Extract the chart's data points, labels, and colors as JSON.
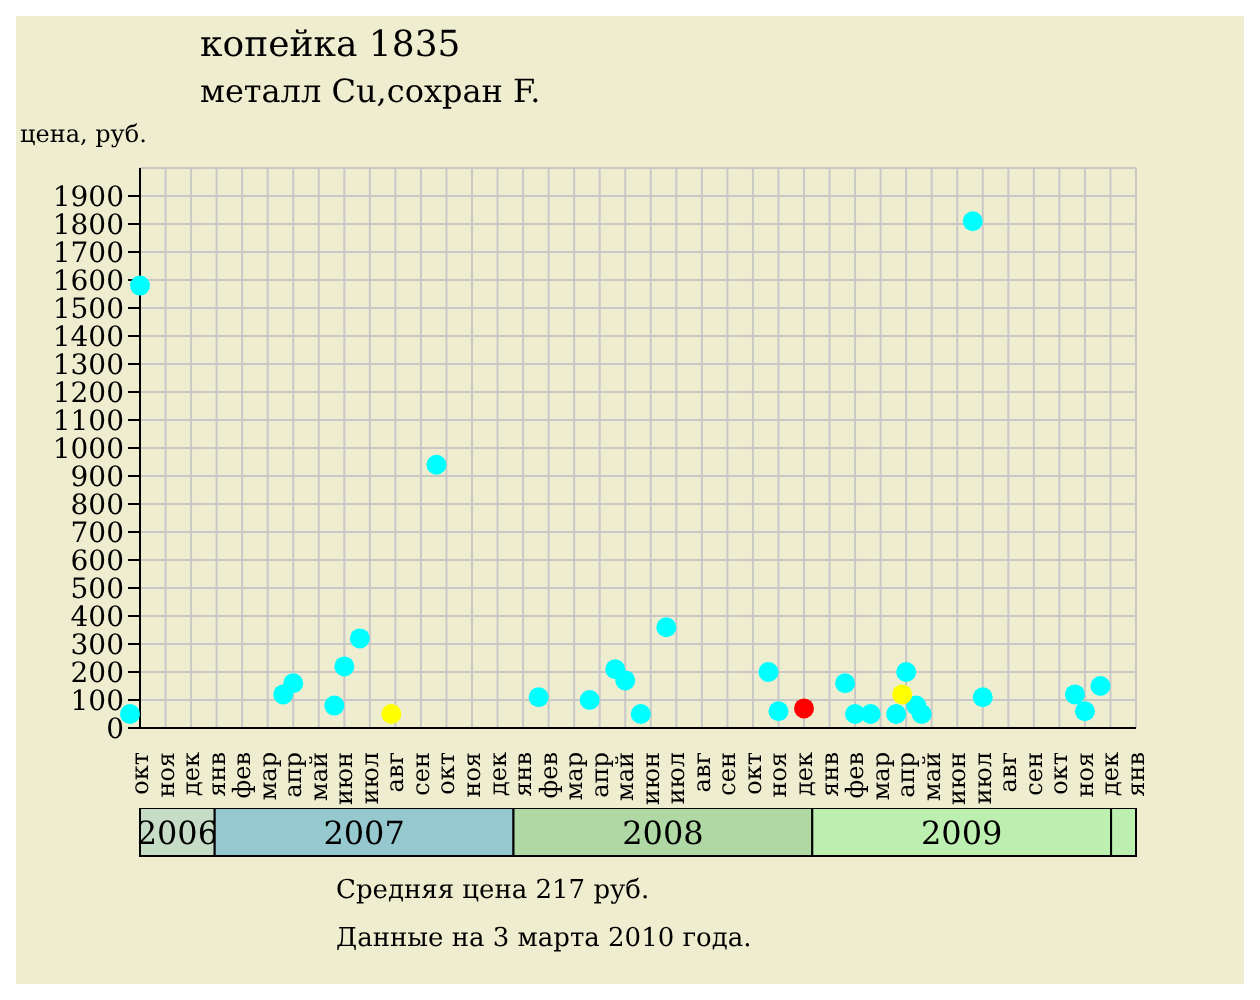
{
  "chart_data": {
    "type": "scatter",
    "title": "копейка 1835",
    "subtitle": "металл Cu,сохран F.",
    "ylabel": "цена, руб.",
    "categories": [
      "окт",
      "ноя",
      "дек",
      "янв",
      "фев",
      "мар",
      "апр",
      "май",
      "июн",
      "июл",
      "авг",
      "сен",
      "окт",
      "ноя",
      "дек",
      "янв",
      "фев",
      "мар",
      "апр",
      "май",
      "июн",
      "июл",
      "авг",
      "сен",
      "окт",
      "ноя",
      "дек",
      "янв",
      "фев",
      "мар",
      "апр",
      "май",
      "июн",
      "июл",
      "авг",
      "сен",
      "окт",
      "ноя",
      "дек",
      "янв"
    ],
    "ylim": [
      0,
      2000
    ],
    "yticks": [
      0,
      100,
      200,
      300,
      400,
      500,
      600,
      700,
      800,
      900,
      1000,
      1100,
      1200,
      1300,
      1400,
      1500,
      1600,
      1700,
      1800,
      1900
    ],
    "grid": true,
    "marker": "circle",
    "series": [
      {
        "color": "#00ffff",
        "values": [
          50,
          null,
          null,
          null,
          null,
          null,
          120,
          null,
          80,
          320,
          null,
          null,
          940,
          null,
          null,
          null,
          110,
          null,
          100,
          210,
          50,
          360,
          null,
          null,
          null,
          200,
          null,
          null,
          160,
          50,
          50,
          50,
          null,
          1810,
          null,
          null,
          null,
          120,
          150,
          null
        ]
      },
      {
        "color": "#00ffff",
        "values": [
          1580,
          null,
          null,
          null,
          null,
          null,
          160,
          null,
          220,
          null,
          null,
          null,
          null,
          null,
          null,
          null,
          null,
          null,
          null,
          170,
          null,
          null,
          null,
          null,
          null,
          60,
          null,
          null,
          50,
          null,
          200,
          null,
          null,
          110,
          null,
          null,
          null,
          60,
          null,
          null
        ]
      },
      {
        "color": "#00ffff",
        "values": [
          null,
          null,
          null,
          null,
          null,
          null,
          null,
          null,
          null,
          null,
          null,
          null,
          null,
          null,
          null,
          null,
          null,
          null,
          null,
          null,
          null,
          null,
          null,
          null,
          null,
          null,
          null,
          null,
          null,
          null,
          80,
          null,
          null,
          null,
          null,
          null,
          null,
          null,
          null,
          null
        ]
      },
      {
        "color": "#ff0000",
        "values": [
          null,
          null,
          null,
          null,
          null,
          null,
          null,
          null,
          null,
          null,
          null,
          null,
          null,
          null,
          null,
          null,
          null,
          null,
          null,
          null,
          null,
          null,
          null,
          null,
          null,
          null,
          70,
          null,
          null,
          null,
          null,
          null,
          null,
          null,
          null,
          null,
          null,
          null,
          null,
          null
        ]
      },
      {
        "color": "#ffff00",
        "values": [
          null,
          null,
          null,
          null,
          null,
          null,
          null,
          null,
          null,
          null,
          50,
          null,
          null,
          null,
          null,
          null,
          null,
          null,
          null,
          null,
          null,
          null,
          null,
          null,
          null,
          null,
          null,
          null,
          null,
          null,
          120,
          null,
          null,
          null,
          null,
          null,
          null,
          null,
          null,
          null
        ]
      }
    ],
    "annotations": [
      "2006",
      "2007",
      "2008",
      "2009",
      "Средняя цена 217 руб.",
      "Данные на 3 марта 2010 года."
    ]
  }
}
